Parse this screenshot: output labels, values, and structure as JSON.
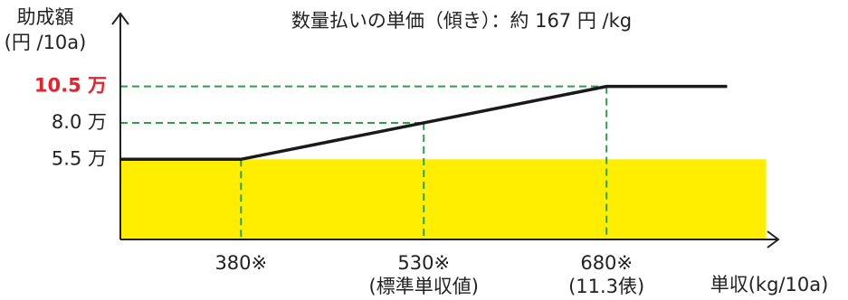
{
  "chart_data": {
    "type": "line",
    "title": "数量払いの単価（傾き）：約 167 円 /kg",
    "y_label": [
      "助成額",
      "(円 /10a)"
    ],
    "x_label": "単収(kg/10a)",
    "x": [
      281,
      380,
      530,
      680,
      779
    ],
    "series": [
      {
        "color": "#1a1a1a",
        "values": [
          5.5,
          5.5,
          8,
          10.5,
          10.5
        ]
      }
    ],
    "fill": {
      "color": "#ffee00",
      "y": 5.5,
      "x": [
        281,
        811
      ]
    },
    "guide_color": "#2e9e4a",
    "xlim": [
      281,
      821
    ],
    "ylim": [
      0,
      15.5
    ],
    "xticks": [
      {
        "value": 380,
        "label": "380※"
      },
      {
        "value": 530,
        "label": "530※",
        "sublabel": "(標準単収値)"
      },
      {
        "value": 680,
        "label": "680※",
        "sublabel": "(11.3俵)"
      }
    ],
    "yticks": [
      {
        "value": 5.5,
        "label": "5.5 万"
      },
      {
        "value": 8,
        "label": "8.0 万"
      },
      {
        "value": 10.5,
        "label": "10.5 万",
        "color": "#e8212e"
      }
    ]
  }
}
